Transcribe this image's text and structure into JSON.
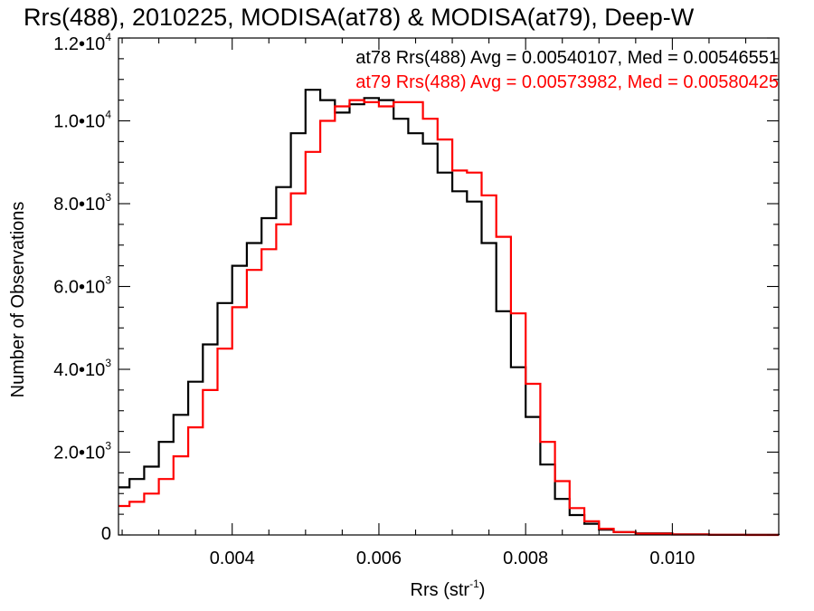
{
  "chart_data": {
    "type": "line",
    "style": "histogram-steps",
    "title": "Rrs(488), 2010225, MODISA(at78) & MODISA(at79), Deep-W",
    "xlabel": "Rrs (str⁻¹)",
    "ylabel": "Number of Observations",
    "xlim": [
      0.00245,
      0.01145
    ],
    "ylim": [
      0,
      12000
    ],
    "x_ticks": [
      0.004,
      0.006,
      0.008,
      0.01
    ],
    "x_tick_labels": [
      "0.004",
      "0.006",
      "0.008",
      "0.010"
    ],
    "y_ticks": [
      0,
      2000,
      4000,
      6000,
      8000,
      10000,
      12000
    ],
    "y_tick_mantissa": [
      "0",
      "2.0•1",
      "4.0•1",
      "6.0•1",
      "8.0•1",
      "1.0•1",
      "1.2•1"
    ],
    "y_tick_labels": [
      "0",
      "2.0•10³",
      "4.0•10³",
      "6.0•10³",
      "8.0•10³",
      "1.0•10⁴",
      "1.2•10⁴"
    ],
    "y_tick_base": [
      "",
      "0",
      "0",
      "0",
      "0",
      "0",
      "0"
    ],
    "y_tick_exp": [
      "",
      "3",
      "3",
      "3",
      "3",
      "4",
      "4"
    ],
    "grid": false,
    "legend_position": "top-right",
    "series": [
      {
        "label": "at78 Rrs(488) Avg = 0.00540107, Med = 0.00546551",
        "color": "#000000",
        "x": [
          0.00245,
          0.0026,
          0.0028,
          0.003,
          0.0032,
          0.0034,
          0.0036,
          0.0038,
          0.004,
          0.0042,
          0.0044,
          0.0046,
          0.0048,
          0.005,
          0.0052,
          0.0054,
          0.0056,
          0.0058,
          0.006,
          0.0062,
          0.0064,
          0.0066,
          0.0068,
          0.007,
          0.0072,
          0.0074,
          0.0076,
          0.0078,
          0.008,
          0.0082,
          0.0084,
          0.0086,
          0.0088,
          0.009,
          0.0092,
          0.0095,
          0.01,
          0.0105,
          0.011,
          0.01145
        ],
        "y": [
          1150,
          1350,
          1650,
          2250,
          2900,
          3700,
          4600,
          5600,
          6500,
          7050,
          7650,
          8400,
          9700,
          10750,
          10500,
          10200,
          10400,
          10550,
          10500,
          10050,
          9700,
          9450,
          8750,
          8300,
          8050,
          7050,
          5400,
          4050,
          2850,
          1700,
          870,
          480,
          270,
          130,
          70,
          40,
          15,
          5,
          2,
          0
        ]
      },
      {
        "label": "at79 Rrs(488) Avg = 0.00573982, Med = 0.00580425",
        "color": "#ff0000",
        "x": [
          0.00245,
          0.0026,
          0.0028,
          0.003,
          0.0032,
          0.0034,
          0.0036,
          0.0038,
          0.004,
          0.0042,
          0.0044,
          0.0046,
          0.0048,
          0.005,
          0.0052,
          0.0054,
          0.0056,
          0.0058,
          0.006,
          0.0062,
          0.0064,
          0.0066,
          0.0068,
          0.007,
          0.0072,
          0.0074,
          0.0076,
          0.0078,
          0.008,
          0.0082,
          0.0084,
          0.0086,
          0.0088,
          0.009,
          0.0092,
          0.0095,
          0.01,
          0.0105,
          0.011,
          0.01145
        ],
        "y": [
          700,
          800,
          1000,
          1350,
          1900,
          2600,
          3500,
          4500,
          5500,
          6400,
          6900,
          7500,
          8250,
          9250,
          10000,
          10350,
          10500,
          10450,
          10350,
          10450,
          10450,
          10050,
          9550,
          8800,
          8750,
          8200,
          7200,
          5350,
          3650,
          2250,
          1300,
          650,
          330,
          150,
          70,
          30,
          10,
          4,
          1,
          0
        ]
      }
    ]
  }
}
